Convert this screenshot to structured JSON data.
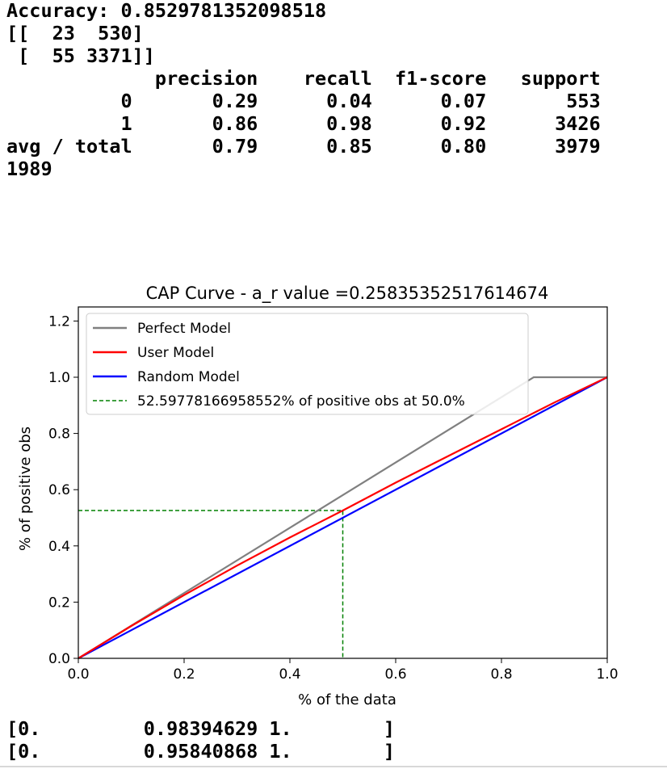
{
  "console_top": {
    "accuracy": "Accuracy: 0.8529781352098518",
    "confusion_row_1": "[[  23  530]",
    "confusion_row_2": " [  55 3371]]",
    "report_header": "             precision    recall  f1-score   support",
    "report_blank_1": "",
    "report_row_0": "          0       0.29      0.04      0.07       553",
    "report_row_1": "          1       0.86      0.98      0.92      3426",
    "report_blank_2": "",
    "report_avg": "avg / total       0.79      0.85      0.80      3979",
    "report_blank_3": "",
    "count_output": "1989"
  },
  "chart_data": {
    "type": "line",
    "title": "CAP Curve - a_r value =0.25835352517614674",
    "xlabel": "% of the data",
    "ylabel": "% of positive obs",
    "xlim": [
      0.0,
      1.0
    ],
    "ylim": [
      0.0,
      1.25
    ],
    "xticks": [
      "0.0",
      "0.2",
      "0.4",
      "0.6",
      "0.8",
      "1.0"
    ],
    "xtick_values": [
      0.0,
      0.2,
      0.4,
      0.6,
      0.8,
      1.0
    ],
    "yticks": [
      "0.0",
      "0.2",
      "0.4",
      "0.6",
      "0.8",
      "1.0",
      "1.2"
    ],
    "ytick_values": [
      0.0,
      0.2,
      0.4,
      0.6,
      0.8,
      1.0,
      1.2
    ],
    "grid": false,
    "legend_position": "upper-left",
    "series": [
      {
        "name": "Perfect Model",
        "color": "#808080",
        "style": "solid",
        "x": [
          0.0,
          0.861,
          1.0
        ],
        "y": [
          0.0,
          1.0,
          1.0
        ]
      },
      {
        "name": "User Model",
        "color": "#ff0000",
        "style": "solid",
        "x": [
          0.0,
          0.1,
          0.2,
          0.3,
          0.4,
          0.5,
          0.6,
          0.7,
          0.8,
          0.9,
          1.0
        ],
        "y": [
          0.0,
          0.115,
          0.225,
          0.33,
          0.43,
          0.526,
          0.625,
          0.72,
          0.815,
          0.91,
          1.0
        ]
      },
      {
        "name": "Random Model",
        "color": "#0000ff",
        "style": "solid",
        "x": [
          0.0,
          1.0
        ],
        "y": [
          0.0,
          1.0
        ]
      },
      {
        "name": "52.59778166958552% of positive obs at 50.0%",
        "color": "#008000",
        "style": "dashed",
        "x": [
          0.0,
          0.5,
          0.5
        ],
        "y": [
          0.5259778166958552,
          0.5259778166958552,
          0.0
        ]
      }
    ]
  },
  "console_bottom": {
    "array_row_1": "[0.         0.98394629 1.        ]",
    "array_row_2": "[0.         0.95840868 1.        ]"
  }
}
